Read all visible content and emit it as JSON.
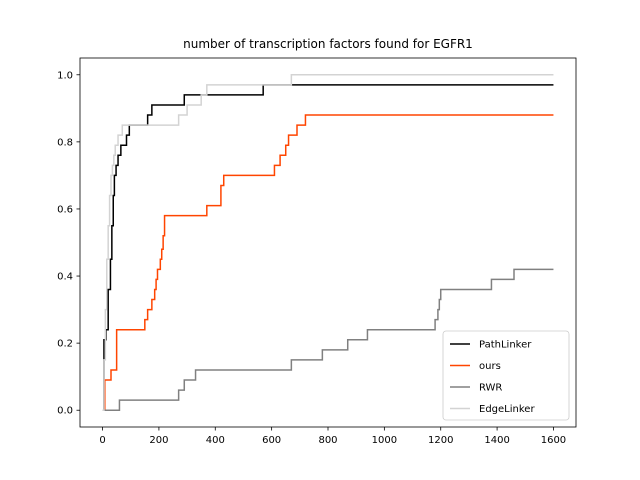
{
  "chart_data": {
    "type": "line",
    "title": "number of transcription factors found for EGFR1",
    "xlabel": "",
    "ylabel": "",
    "xlim": [
      -80,
      1680
    ],
    "ylim": [
      -0.05,
      1.05
    ],
    "x_ticks": [
      0,
      200,
      400,
      600,
      800,
      1000,
      1200,
      1400,
      1600
    ],
    "y_ticks": [
      0.0,
      0.2,
      0.4,
      0.6,
      0.8,
      1.0
    ],
    "x_tick_labels": [
      "0",
      "200",
      "400",
      "600",
      "800",
      "1000",
      "1200",
      "1400",
      "1600"
    ],
    "y_tick_labels": [
      "0.0",
      "0.2",
      "0.4",
      "0.6",
      "0.8",
      "1.0"
    ],
    "grid": false,
    "legend_position": "lower-right",
    "step": true,
    "series": [
      {
        "name": "PathLinker",
        "color": "#000000",
        "points": [
          [
            0,
            0
          ],
          [
            5,
            0.21
          ],
          [
            12,
            0.24
          ],
          [
            20,
            0.36
          ],
          [
            28,
            0.45
          ],
          [
            33,
            0.55
          ],
          [
            38,
            0.64
          ],
          [
            42,
            0.7
          ],
          [
            48,
            0.73
          ],
          [
            55,
            0.76
          ],
          [
            65,
            0.79
          ],
          [
            85,
            0.82
          ],
          [
            95,
            0.85
          ],
          [
            160,
            0.88
          ],
          [
            175,
            0.91
          ],
          [
            290,
            0.94
          ],
          [
            570,
            0.97
          ],
          [
            1600,
            0.97
          ]
        ]
      },
      {
        "name": "ours",
        "color": "#ff4500",
        "points": [
          [
            0,
            0
          ],
          [
            8,
            0.09
          ],
          [
            30,
            0.12
          ],
          [
            50,
            0.24
          ],
          [
            150,
            0.27
          ],
          [
            160,
            0.3
          ],
          [
            175,
            0.33
          ],
          [
            185,
            0.36
          ],
          [
            190,
            0.39
          ],
          [
            195,
            0.42
          ],
          [
            205,
            0.45
          ],
          [
            210,
            0.48
          ],
          [
            215,
            0.52
          ],
          [
            220,
            0.58
          ],
          [
            370,
            0.61
          ],
          [
            420,
            0.67
          ],
          [
            430,
            0.7
          ],
          [
            610,
            0.73
          ],
          [
            630,
            0.76
          ],
          [
            650,
            0.79
          ],
          [
            660,
            0.82
          ],
          [
            690,
            0.85
          ],
          [
            720,
            0.88
          ],
          [
            1600,
            0.88
          ]
        ]
      },
      {
        "name": "RWR",
        "color": "#808080",
        "points": [
          [
            0,
            0
          ],
          [
            60,
            0.03
          ],
          [
            270,
            0.06
          ],
          [
            290,
            0.09
          ],
          [
            330,
            0.12
          ],
          [
            670,
            0.15
          ],
          [
            780,
            0.18
          ],
          [
            870,
            0.21
          ],
          [
            940,
            0.24
          ],
          [
            1180,
            0.27
          ],
          [
            1190,
            0.3
          ],
          [
            1195,
            0.33
          ],
          [
            1200,
            0.36
          ],
          [
            1380,
            0.39
          ],
          [
            1460,
            0.42
          ],
          [
            1600,
            0.42
          ]
        ]
      },
      {
        "name": "EdgeLinker",
        "color": "#d3d3d3",
        "points": [
          [
            0,
            0
          ],
          [
            5,
            0.15
          ],
          [
            10,
            0.3
          ],
          [
            15,
            0.45
          ],
          [
            20,
            0.55
          ],
          [
            25,
            0.64
          ],
          [
            30,
            0.7
          ],
          [
            35,
            0.73
          ],
          [
            40,
            0.76
          ],
          [
            45,
            0.79
          ],
          [
            55,
            0.82
          ],
          [
            70,
            0.85
          ],
          [
            270,
            0.88
          ],
          [
            300,
            0.91
          ],
          [
            350,
            0.94
          ],
          [
            370,
            0.97
          ],
          [
            670,
            1.0
          ],
          [
            1600,
            1.0
          ]
        ]
      }
    ]
  }
}
